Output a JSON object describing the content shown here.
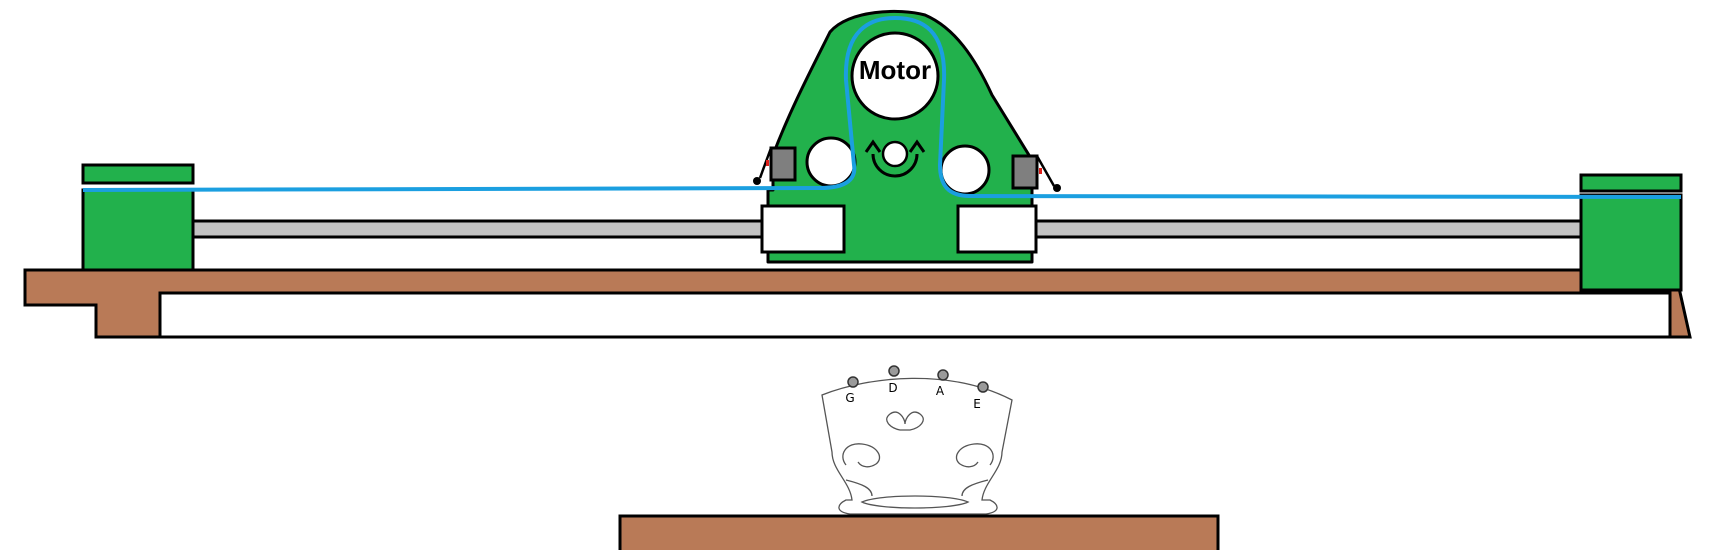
{
  "labels": {
    "motor": "Motor"
  },
  "bridge": {
    "strings": [
      "G",
      "D",
      "A",
      "E"
    ]
  },
  "colors": {
    "carriage": "#22b14c",
    "belt": "#1b9fe0",
    "wood": "#b97a57",
    "rail": "#c3c3c3",
    "outline": "#000000",
    "block": "#7f7f7f",
    "bridge_outline": "#555555"
  }
}
